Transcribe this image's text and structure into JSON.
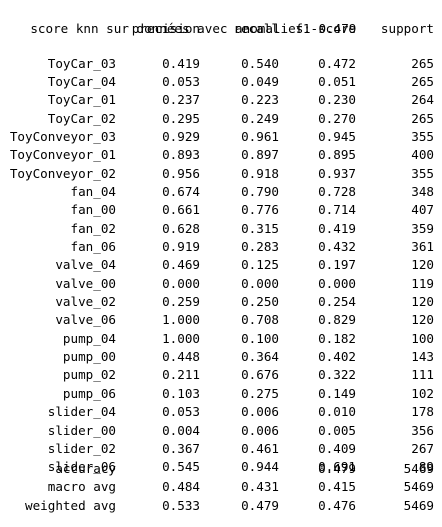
{
  "score_line": "score knn sur données avec anomalies: 0.479",
  "headers": [
    "precision",
    "recall",
    "f1-score",
    "support"
  ],
  "rows": [
    {
      "label": "ToyCar_03",
      "precision": "0.419",
      "recall": "0.540",
      "f1": "0.472",
      "support": "265"
    },
    {
      "label": "ToyCar_04",
      "precision": "0.053",
      "recall": "0.049",
      "f1": "0.051",
      "support": "265"
    },
    {
      "label": "ToyCar_01",
      "precision": "0.237",
      "recall": "0.223",
      "f1": "0.230",
      "support": "264"
    },
    {
      "label": "ToyCar_02",
      "precision": "0.295",
      "recall": "0.249",
      "f1": "0.270",
      "support": "265"
    },
    {
      "label": "ToyConveyor_03",
      "precision": "0.929",
      "recall": "0.961",
      "f1": "0.945",
      "support": "355"
    },
    {
      "label": "ToyConveyor_01",
      "precision": "0.893",
      "recall": "0.897",
      "f1": "0.895",
      "support": "400"
    },
    {
      "label": "ToyConveyor_02",
      "precision": "0.956",
      "recall": "0.918",
      "f1": "0.937",
      "support": "355"
    },
    {
      "label": "fan_04",
      "precision": "0.674",
      "recall": "0.790",
      "f1": "0.728",
      "support": "348"
    },
    {
      "label": "fan_00",
      "precision": "0.661",
      "recall": "0.776",
      "f1": "0.714",
      "support": "407"
    },
    {
      "label": "fan_02",
      "precision": "0.628",
      "recall": "0.315",
      "f1": "0.419",
      "support": "359"
    },
    {
      "label": "fan_06",
      "precision": "0.919",
      "recall": "0.283",
      "f1": "0.432",
      "support": "361"
    },
    {
      "label": "valve_04",
      "precision": "0.469",
      "recall": "0.125",
      "f1": "0.197",
      "support": "120"
    },
    {
      "label": "valve_00",
      "precision": "0.000",
      "recall": "0.000",
      "f1": "0.000",
      "support": "119"
    },
    {
      "label": "valve_02",
      "precision": "0.259",
      "recall": "0.250",
      "f1": "0.254",
      "support": "120"
    },
    {
      "label": "valve_06",
      "precision": "1.000",
      "recall": "0.708",
      "f1": "0.829",
      "support": "120"
    },
    {
      "label": "pump_04",
      "precision": "1.000",
      "recall": "0.100",
      "f1": "0.182",
      "support": "100"
    },
    {
      "label": "pump_00",
      "precision": "0.448",
      "recall": "0.364",
      "f1": "0.402",
      "support": "143"
    },
    {
      "label": "pump_02",
      "precision": "0.211",
      "recall": "0.676",
      "f1": "0.322",
      "support": "111"
    },
    {
      "label": "pump_06",
      "precision": "0.103",
      "recall": "0.275",
      "f1": "0.149",
      "support": "102"
    },
    {
      "label": "slider_04",
      "precision": "0.053",
      "recall": "0.006",
      "f1": "0.010",
      "support": "178"
    },
    {
      "label": "slider_00",
      "precision": "0.004",
      "recall": "0.006",
      "f1": "0.005",
      "support": "356"
    },
    {
      "label": "slider_02",
      "precision": "0.367",
      "recall": "0.461",
      "f1": "0.409",
      "support": "267"
    },
    {
      "label": "slider_06",
      "precision": "0.545",
      "recall": "0.944",
      "f1": "0.691",
      "support": "89"
    }
  ],
  "summary": [
    {
      "label": "accuracy",
      "precision": "",
      "recall": "",
      "f1": "0.479",
      "support": "5469"
    },
    {
      "label": "macro avg",
      "precision": "0.484",
      "recall": "0.431",
      "f1": "0.415",
      "support": "5469"
    },
    {
      "label": "weighted avg",
      "precision": "0.533",
      "recall": "0.479",
      "f1": "0.476",
      "support": "5469"
    }
  ]
}
